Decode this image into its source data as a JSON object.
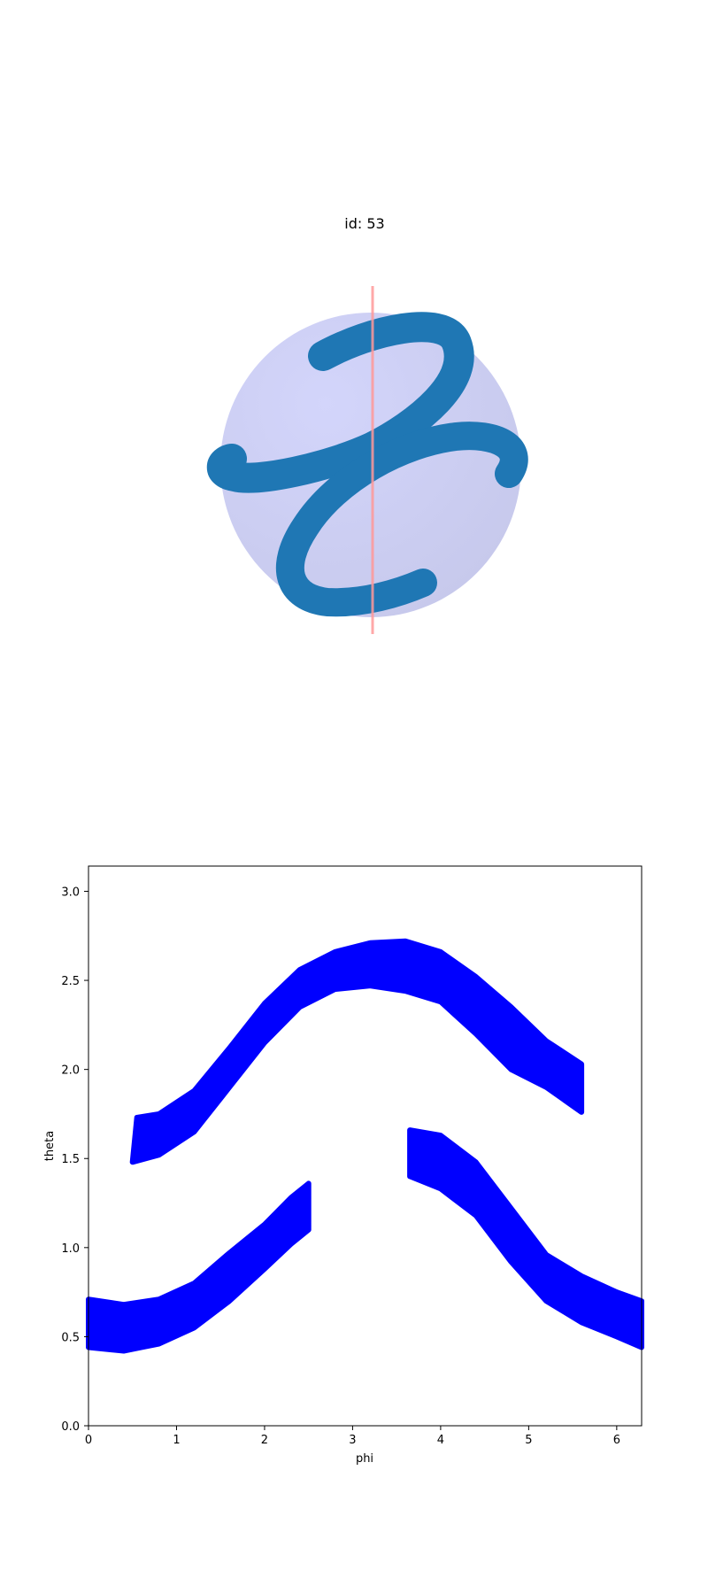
{
  "chart_data": [
    {
      "type": "3d-surface",
      "title": "id: 53",
      "sphere_color": "#cccff5",
      "band_color": "#1f77b4",
      "axis_line_color": "#ff9999"
    },
    {
      "type": "scatter",
      "xlabel": "phi",
      "ylabel": "theta",
      "xlim": [
        0,
        6.283
      ],
      "ylim": [
        0,
        3.1416
      ],
      "xticks": [
        "0",
        "1",
        "2",
        "3",
        "4",
        "5",
        "6"
      ],
      "yticks": [
        "0.0",
        "0.5",
        "1.0",
        "1.5",
        "2.0",
        "2.5",
        "3.0"
      ],
      "grid": false,
      "color": "#0000ff",
      "series": [
        {
          "lower": [
            [
              0.5,
              1.48
            ],
            [
              0.8,
              1.52
            ],
            [
              1.2,
              1.65
            ],
            [
              1.6,
              1.9
            ],
            [
              2.0,
              2.15
            ],
            [
              2.4,
              2.35
            ],
            [
              2.8,
              2.45
            ],
            [
              3.2,
              2.47
            ],
            [
              3.6,
              2.44
            ],
            [
              4.0,
              2.38
            ],
            [
              4.4,
              2.2
            ],
            [
              4.8,
              2.0
            ],
            [
              5.2,
              1.9
            ],
            [
              5.6,
              1.76
            ]
          ],
          "upper": [
            [
              0.55,
              1.73
            ],
            [
              0.8,
              1.75
            ],
            [
              1.2,
              1.88
            ],
            [
              1.6,
              2.12
            ],
            [
              2.0,
              2.37
            ],
            [
              2.4,
              2.56
            ],
            [
              2.8,
              2.66
            ],
            [
              3.2,
              2.71
            ],
            [
              3.6,
              2.72
            ],
            [
              4.0,
              2.66
            ],
            [
              4.4,
              2.52
            ],
            [
              4.8,
              2.35
            ],
            [
              5.2,
              2.16
            ],
            [
              5.6,
              2.03
            ]
          ]
        },
        {
          "lower": [
            [
              0,
              0.44
            ],
            [
              0.4,
              0.42
            ],
            [
              0.8,
              0.46
            ],
            [
              1.2,
              0.55
            ],
            [
              1.6,
              0.7
            ],
            [
              2.0,
              0.88
            ],
            [
              2.3,
              1.02
            ],
            [
              2.5,
              1.1
            ]
          ],
          "upper": [
            [
              0,
              0.71
            ],
            [
              0.4,
              0.68
            ],
            [
              0.8,
              0.71
            ],
            [
              1.2,
              0.8
            ],
            [
              1.6,
              0.97
            ],
            [
              2.0,
              1.13
            ],
            [
              2.3,
              1.28
            ],
            [
              2.5,
              1.36
            ]
          ]
        },
        {
          "lower": [
            [
              3.65,
              1.4
            ],
            [
              4.0,
              1.33
            ],
            [
              4.4,
              1.18
            ],
            [
              4.8,
              0.92
            ],
            [
              5.2,
              0.7
            ],
            [
              5.6,
              0.58
            ],
            [
              6.0,
              0.5
            ],
            [
              6.283,
              0.44
            ]
          ],
          "upper": [
            [
              3.65,
              1.66
            ],
            [
              4.0,
              1.63
            ],
            [
              4.4,
              1.48
            ],
            [
              4.8,
              1.22
            ],
            [
              5.2,
              0.96
            ],
            [
              5.6,
              0.84
            ],
            [
              6.0,
              0.75
            ],
            [
              6.283,
              0.7
            ]
          ]
        }
      ]
    }
  ]
}
